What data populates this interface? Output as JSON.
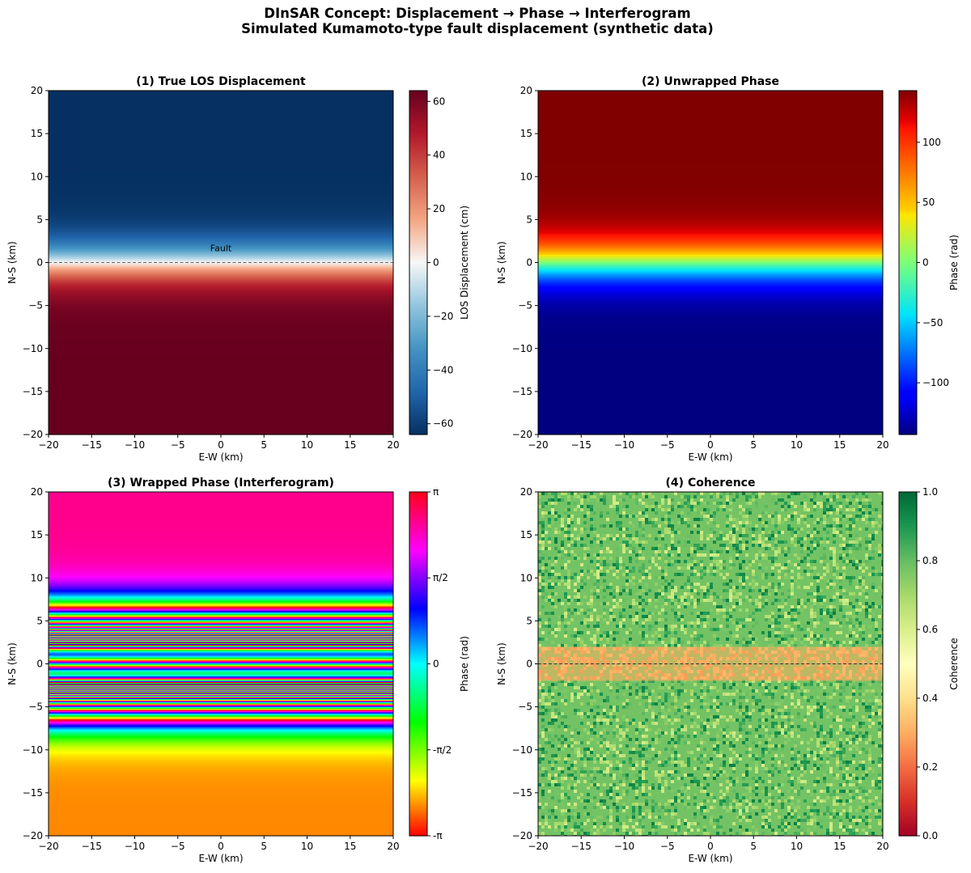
{
  "figure": {
    "title_line1": "DInSAR Concept: Displacement → Phase → Interferogram",
    "title_line2": "Simulated Kumamoto-type fault displacement (synthetic data)"
  },
  "chart_data": [
    {
      "type": "heatmap",
      "title": "(1) True LOS Displacement",
      "xlabel": "E-W (km)",
      "ylabel": "N-S (km)",
      "xlim": [
        -20,
        20
      ],
      "ylim": [
        -20,
        20
      ],
      "xticks": [
        -20,
        -15,
        -10,
        -5,
        0,
        5,
        10,
        15,
        20
      ],
      "yticks": [
        -20,
        -15,
        -10,
        -5,
        0,
        5,
        10,
        15,
        20
      ],
      "colormap": "RdBu_r",
      "field": "los_displacement",
      "fault_line_y": 0,
      "annotation": {
        "text": "Fault",
        "x": 0,
        "y": 1.5
      },
      "colorbar": {
        "label": "LOS Displacement (cm)",
        "range": [
          -64,
          64
        ],
        "ticks": [
          -60,
          -40,
          -20,
          0,
          20,
          40,
          60
        ],
        "tick_labels": [
          "−60",
          "−40",
          "−20",
          "0",
          "20",
          "40",
          "60"
        ]
      }
    },
    {
      "type": "heatmap",
      "title": "(2) Unwrapped Phase",
      "xlabel": "E-W (km)",
      "ylabel": "N-S (km)",
      "xlim": [
        -20,
        20
      ],
      "ylim": [
        -20,
        20
      ],
      "xticks": [
        -20,
        -15,
        -10,
        -5,
        0,
        5,
        10,
        15,
        20
      ],
      "yticks": [
        -20,
        -15,
        -10,
        -5,
        0,
        5,
        10,
        15,
        20
      ],
      "colormap": "jet",
      "field": "unwrapped_phase",
      "colorbar": {
        "label": "Phase (rad)",
        "range": [
          -143,
          143
        ],
        "ticks": [
          -100,
          -50,
          0,
          50,
          100
        ],
        "tick_labels": [
          "−100",
          "−50",
          "0",
          "50",
          "100"
        ]
      }
    },
    {
      "type": "heatmap",
      "title": "(3) Wrapped Phase (Interferogram)",
      "xlabel": "E-W (km)",
      "ylabel": "N-S (km)",
      "xlim": [
        -20,
        20
      ],
      "ylim": [
        -20,
        20
      ],
      "xticks": [
        -20,
        -15,
        -10,
        -5,
        0,
        5,
        10,
        15,
        20
      ],
      "yticks": [
        -20,
        -15,
        -10,
        -5,
        0,
        5,
        10,
        15,
        20
      ],
      "colormap": "hsv",
      "field": "wrapped_phase",
      "colorbar": {
        "label": "Phase (rad)",
        "range": [
          -3.14159,
          3.14159
        ],
        "ticks": [
          -3.14159,
          -1.5708,
          0,
          1.5708,
          3.14159
        ],
        "tick_labels": [
          "-π",
          "-π/2",
          "0",
          "π/2",
          "π"
        ]
      }
    },
    {
      "type": "heatmap",
      "title": "(4) Coherence",
      "xlabel": "E-W (km)",
      "ylabel": "N-S (km)",
      "xlim": [
        -20,
        20
      ],
      "ylim": [
        -20,
        20
      ],
      "xticks": [
        -20,
        -15,
        -10,
        -5,
        0,
        5,
        10,
        15,
        20
      ],
      "yticks": [
        -20,
        -15,
        -10,
        -5,
        0,
        5,
        10,
        15,
        20
      ],
      "colormap": "RdYlGn",
      "field": "coherence",
      "fault_line_y": 0,
      "low_coherence_band": [
        -2,
        2
      ],
      "coherence_background": 0.78,
      "coherence_band": 0.3,
      "colorbar": {
        "label": "Coherence",
        "range": [
          0,
          1
        ],
        "ticks": [
          0,
          0.2,
          0.4,
          0.6,
          0.8,
          1.0
        ],
        "tick_labels": [
          "0.0",
          "0.2",
          "0.4",
          "0.6",
          "0.8",
          "1.0"
        ]
      }
    }
  ],
  "model": {
    "los_max_cm": 64,
    "phase_max_rad": 143,
    "decay_km": 3
  }
}
